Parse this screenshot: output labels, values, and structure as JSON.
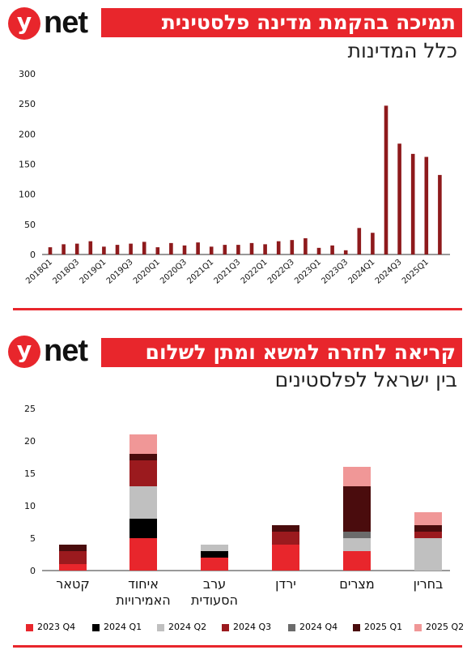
{
  "brand": {
    "logo_letter": "y",
    "logo_word": "net"
  },
  "top": {
    "banner_title": "תמיכה בהקמת מדינה פלסטינית",
    "subtitle": "כלל המדינות"
  },
  "bottom": {
    "banner_title": "קריאה לחזרה למשא ומתן לשלום",
    "subtitle": "בין ישראל לפלסטינים"
  },
  "chart_data": [
    {
      "type": "bar",
      "title": "תמיכה בהקמת מדינה פלסטינית",
      "subtitle": "כלל המדינות",
      "color": "#8e1a1c",
      "ylim": [
        0,
        300
      ],
      "yticks": [
        0,
        50,
        100,
        150,
        200,
        250,
        300
      ],
      "grid": false,
      "xtick_labels": [
        "2018Q1",
        "2018Q3",
        "2019Q1",
        "2019Q3",
        "2020Q1",
        "2020Q3",
        "2021Q1",
        "2021Q3",
        "2022Q1",
        "2022Q3",
        "2023Q1",
        "2023Q3",
        "2024Q1",
        "2024Q3",
        "2025Q1"
      ],
      "categories": [
        "2018Q1",
        "2018Q2",
        "2018Q3",
        "2018Q4",
        "2019Q1",
        "2019Q2",
        "2019Q3",
        "2019Q4",
        "2020Q1",
        "2020Q2",
        "2020Q3",
        "2020Q4",
        "2021Q1",
        "2021Q2",
        "2021Q3",
        "2021Q4",
        "2022Q1",
        "2022Q2",
        "2022Q3",
        "2022Q4",
        "2023Q1",
        "2023Q2",
        "2023Q3",
        "2023Q4",
        "2024Q1",
        "2024Q2",
        "2024Q3",
        "2024Q4",
        "2025Q1",
        "2025Q2"
      ],
      "values": [
        12,
        17,
        18,
        22,
        13,
        16,
        18,
        21,
        12,
        19,
        15,
        20,
        13,
        16,
        16,
        19,
        17,
        22,
        24,
        27,
        11,
        15,
        7,
        44,
        36,
        247,
        184,
        167,
        162,
        132
      ]
    },
    {
      "type": "bar",
      "stacked": true,
      "title": "קריאה לחזרה למשא ומתן לשלום",
      "subtitle": "בין ישראל לפלסטינים",
      "ylim": [
        0,
        25
      ],
      "yticks": [
        0,
        5,
        10,
        15,
        20,
        25
      ],
      "grid": false,
      "legend_position": "bottom",
      "categories": [
        "קטאר",
        "איחוד האמירויות",
        "ערב הסעודית",
        "ירדן",
        "מצרים",
        "בחרין"
      ],
      "series": [
        {
          "name": "2023 Q4",
          "color": "#e8262c",
          "values": [
            1,
            5,
            2,
            4,
            3,
            0
          ]
        },
        {
          "name": "2024 Q1",
          "color": "#000000",
          "values": [
            0,
            3,
            1,
            0,
            0,
            0
          ]
        },
        {
          "name": "2024 Q2",
          "color": "#c0c0c0",
          "values": [
            0,
            5,
            1,
            0,
            2,
            5
          ]
        },
        {
          "name": "2024 Q3",
          "color": "#9b1a1e",
          "values": [
            2,
            4,
            0,
            2,
            0,
            1
          ]
        },
        {
          "name": "2024 Q4",
          "color": "#6b6b6b",
          "values": [
            0,
            0,
            0,
            0,
            1,
            0
          ]
        },
        {
          "name": "2025 Q1",
          "color": "#4a0c0d",
          "values": [
            1,
            1,
            0,
            1,
            7,
            1
          ]
        },
        {
          "name": "2025 Q2",
          "color": "#f09797",
          "values": [
            0,
            3,
            0,
            0,
            3,
            2
          ]
        }
      ]
    }
  ]
}
